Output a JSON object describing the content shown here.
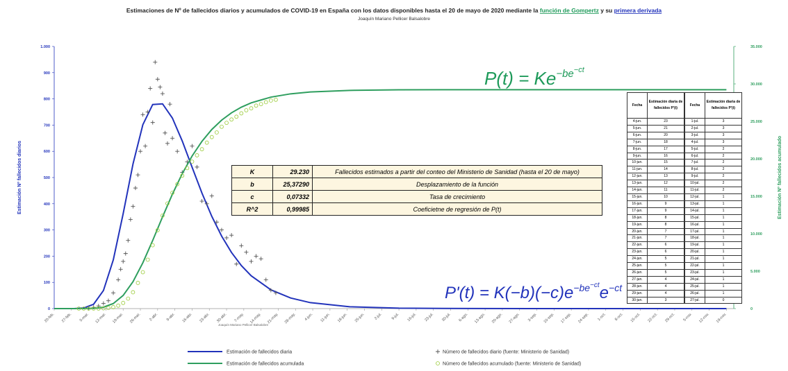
{
  "chart_data": {
    "type": "line",
    "title": [
      "Estimaciones de Nº de fallecidos diarios y acumulados de COVID-19 en España con los datos disponibles hasta el 20 de mayo de 2020 mediante la ",
      "función de Gompertz",
      " y su ",
      "primera derivada"
    ],
    "subtitle": "Joaquín Mariano Pellicer Balsalobre",
    "credit": "Joaquín Mariano Pellicer Balsalobre",
    "ylabel": "Estimación Nº fallecidos diarios",
    "y2label": "Estimación Nº fallecidos acumulado",
    "formula_cumulative": [
      "P(t) = Ke",
      "−be",
      "−ct"
    ],
    "formula_daily": [
      "P'(t) = K(−b)(−c)e",
      "−be",
      "−ct",
      "e",
      "−ct"
    ],
    "xlim": [
      0,
      276
    ],
    "xticks": [
      {
        "value": 0,
        "label": "20-feb."
      },
      {
        "value": 7,
        "label": "27-feb."
      },
      {
        "value": 14,
        "label": "5-mar."
      },
      {
        "value": 21,
        "label": "12-mar."
      },
      {
        "value": 28,
        "label": "19-mar."
      },
      {
        "value": 35,
        "label": "26-mar."
      },
      {
        "value": 42,
        "label": "2-abr."
      },
      {
        "value": 49,
        "label": "9-abr."
      },
      {
        "value": 56,
        "label": "16-abr."
      },
      {
        "value": 63,
        "label": "23-abr."
      },
      {
        "value": 70,
        "label": "30-abr."
      },
      {
        "value": 77,
        "label": "7-may."
      },
      {
        "value": 84,
        "label": "14-may."
      },
      {
        "value": 91,
        "label": "21-may."
      },
      {
        "value": 98,
        "label": "28-may."
      },
      {
        "value": 105,
        "label": "4-jun."
      },
      {
        "value": 112,
        "label": "11-jun."
      },
      {
        "value": 119,
        "label": "18-jun."
      },
      {
        "value": 126,
        "label": "25-jun."
      },
      {
        "value": 133,
        "label": "2-jul."
      },
      {
        "value": 140,
        "label": "9-jul."
      },
      {
        "value": 147,
        "label": "16-jul."
      },
      {
        "value": 154,
        "label": "23-jul."
      },
      {
        "value": 161,
        "label": "30-jul."
      },
      {
        "value": 168,
        "label": "6-ago."
      },
      {
        "value": 175,
        "label": "13-ago."
      },
      {
        "value": 182,
        "label": "20-ago."
      },
      {
        "value": 189,
        "label": "27-ago."
      },
      {
        "value": 196,
        "label": "3-sep."
      },
      {
        "value": 203,
        "label": "10-sep."
      },
      {
        "value": 210,
        "label": "17-sep."
      },
      {
        "value": 217,
        "label": "24-sep."
      },
      {
        "value": 224,
        "label": "1-oct."
      },
      {
        "value": 231,
        "label": "8-oct."
      },
      {
        "value": 238,
        "label": "15-oct."
      },
      {
        "value": 245,
        "label": "22-oct."
      },
      {
        "value": 252,
        "label": "29-oct."
      },
      {
        "value": 259,
        "label": "5-nov."
      },
      {
        "value": 266,
        "label": "12-nov."
      },
      {
        "value": 273,
        "label": "19-nov."
      }
    ],
    "ylim": [
      0,
      1000
    ],
    "yticks": [
      0,
      100,
      200,
      300,
      400,
      500,
      600,
      700,
      800,
      900,
      {
        "value": 1000,
        "label": "1.000"
      }
    ],
    "y2lim": [
      0,
      35000
    ],
    "y2ticks": [
      0,
      {
        "value": 5000,
        "label": "5.000"
      },
      {
        "value": 10000,
        "label": "10.000"
      },
      {
        "value": 15000,
        "label": "15.000"
      },
      {
        "value": 20000,
        "label": "20.000"
      },
      {
        "value": 25000,
        "label": "25.000"
      },
      {
        "value": 30000,
        "label": "30.000"
      },
      {
        "value": 35000,
        "label": "35.000"
      }
    ],
    "series": [
      {
        "name": "Estimación de fallecidos diaria",
        "color": "#2233bb",
        "marker": "line",
        "x": [
          0,
          4,
          8,
          12,
          16,
          20,
          24,
          28,
          32,
          36,
          40,
          44,
          48,
          52,
          56,
          60,
          64,
          68,
          72,
          76,
          80,
          88,
          96,
          104,
          120,
          140,
          170,
          200,
          273
        ],
        "values": [
          0,
          0,
          0.1,
          2.2,
          16.5,
          68.9,
          185.9,
          361.8,
          551.6,
          701.4,
          778.5,
          781.1,
          726.8,
          639.4,
          539.3,
          440.9,
          351.9,
          276.5,
          214.1,
          164.2,
          125.1,
          71.5,
          40.4,
          22.7,
          7.1,
          1.6,
          0.2,
          0,
          0
        ]
      },
      {
        "name": "Número de fallecidos diario (fuente: Ministerio de Sanidad)",
        "color": "#555555",
        "marker": "cross",
        "x": [
          14,
          16,
          18,
          20,
          22,
          24,
          26,
          27,
          28,
          29,
          30,
          31,
          32,
          33,
          34,
          35,
          36,
          37,
          38,
          39,
          40,
          41,
          42,
          43,
          44,
          45,
          46,
          47,
          48,
          50,
          52,
          54,
          56,
          58,
          60,
          62,
          64,
          66,
          68,
          70,
          72,
          74,
          76,
          78,
          80,
          82,
          84,
          86,
          88,
          90
        ],
        "values": [
          2,
          5,
          10,
          20,
          30,
          60,
          110,
          150,
          180,
          210,
          260,
          340,
          390,
          460,
          510,
          600,
          740,
          620,
          750,
          840,
          710,
          940,
          875,
          845,
          820,
          670,
          630,
          780,
          650,
          600,
          520,
          560,
          620,
          540,
          410,
          400,
          430,
          330,
          300,
          270,
          280,
          170,
          240,
          215,
          180,
          200,
          190,
          110,
          70,
          60
        ]
      },
      {
        "name": "Estimación de fallecidos acumulada",
        "color": "#2e9e5e",
        "marker": "line",
        "axis": "y2",
        "x": [
          0,
          4,
          8,
          12,
          16,
          20,
          24,
          28,
          32,
          36,
          40,
          44,
          48,
          52,
          56,
          60,
          64,
          68,
          72,
          76,
          80,
          88,
          96,
          104,
          120,
          140,
          170,
          200,
          273
        ],
        "values": [
          0,
          0,
          0.2,
          3.3,
          33,
          186,
          672,
          1754,
          3587,
          6115,
          9099,
          12242,
          15273,
          18014,
          20370,
          22329,
          23913,
          25164,
          26140,
          26895,
          27471,
          28236,
          28674,
          28919,
          29134,
          29208,
          29228,
          29230,
          29230
        ]
      },
      {
        "name": "Número de fallecidos acumulado (fuente: Ministerio de Sanidad)",
        "color": "#9ccc3c",
        "marker": "circle",
        "axis": "y2",
        "x": [
          10,
          12,
          14,
          16,
          18,
          20,
          22,
          24,
          26,
          28,
          30,
          32,
          34,
          36,
          38,
          40,
          42,
          44,
          46,
          48,
          50,
          52,
          54,
          56,
          58,
          60,
          62,
          64,
          66,
          68,
          70,
          72,
          74,
          76,
          78,
          80,
          82,
          84,
          86,
          88,
          90
        ],
        "values": [
          0,
          0,
          1,
          3,
          10,
          36,
          84,
          190,
          400,
          760,
          1330,
          2180,
          3430,
          4860,
          6530,
          8460,
          10470,
          12420,
          14040,
          15460,
          16610,
          17750,
          18760,
          19620,
          20470,
          21280,
          22160,
          22900,
          23520,
          24280,
          24800,
          25250,
          25620,
          26070,
          26480,
          26740,
          27100,
          27300,
          27560,
          27780,
          27890
        ]
      }
    ]
  },
  "parameter_table": {
    "rows": [
      [
        "K",
        "29.230",
        "Fallecidos estimados a partir del conteo del Ministerio de Sanidad (hasta el 20 de mayo)"
      ],
      [
        "b",
        "25,37290",
        "Desplazamiento de la función"
      ],
      [
        "c",
        "0,07332",
        "Tasa de crecimiento"
      ],
      [
        "R^2",
        "0,99985",
        "Coeficietne de regresión de P(t)"
      ]
    ]
  },
  "forecast_table": {
    "headers": [
      "Fecha",
      "Estimación diaria de fallecidos P'(t)",
      "Fecha",
      "Estimación diaria de fallecidos P'(t)"
    ],
    "rows": [
      [
        "4-jun.",
        23,
        "1-jul.",
        3
      ],
      [
        "5-jun.",
        21,
        "2-jul.",
        3
      ],
      [
        "6-jun.",
        20,
        "3-jul.",
        3
      ],
      [
        "7-jun.",
        18,
        "4-jul.",
        3
      ],
      [
        "8-jun.",
        17,
        "5-jul.",
        2
      ],
      [
        "9-jun.",
        16,
        "6-jul.",
        2
      ],
      [
        "10-jun.",
        15,
        "7-jul.",
        2
      ],
      [
        "11-jun.",
        14,
        "8-jul.",
        2
      ],
      [
        "12-jun.",
        13,
        "9-jul.",
        2
      ],
      [
        "13-jun.",
        12,
        "10-jul.",
        2
      ],
      [
        "14-jun.",
        11,
        "11-jul.",
        2
      ],
      [
        "15-jun.",
        10,
        "12-jul.",
        1
      ],
      [
        "16-jun.",
        9,
        "13-jul.",
        1
      ],
      [
        "17-jun.",
        9,
        "14-jul.",
        1
      ],
      [
        "18-jun.",
        8,
        "15-jul.",
        1
      ],
      [
        "19-jun.",
        8,
        "16-jul.",
        1
      ],
      [
        "20-jun.",
        7,
        "17-jul.",
        1
      ],
      [
        "21-jun.",
        7,
        "18-jul.",
        1
      ],
      [
        "22-jun.",
        6,
        "19-jul.",
        1
      ],
      [
        "23-jun.",
        6,
        "20-jul.",
        1
      ],
      [
        "24-jun.",
        5,
        "21-jul.",
        1
      ],
      [
        "25-jun.",
        5,
        "22-jul.",
        1
      ],
      [
        "26-jun.",
        5,
        "23-jul.",
        1
      ],
      [
        "27-jun.",
        4,
        "24-jul.",
        1
      ],
      [
        "28-jun.",
        4,
        "25-jul.",
        1
      ],
      [
        "29-jun.",
        4,
        "26-jul.",
        1
      ],
      [
        "30-jun.",
        3,
        "27-jul.",
        0
      ]
    ]
  }
}
